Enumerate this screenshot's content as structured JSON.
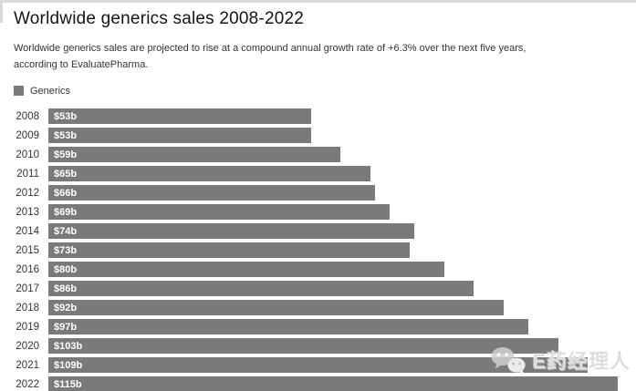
{
  "page": {
    "title": "Worldwide generics sales 2008-2022",
    "subtitle": "Worldwide generics sales are projected to rise at a compound annual growth rate of +6.3% over the next five years, according to EvaluatePharma."
  },
  "legend": {
    "label": "Generics",
    "swatch_color": "#7a7a7a"
  },
  "chart_data": {
    "type": "bar",
    "orientation": "horizontal",
    "title": "Worldwide generics sales 2008-2022",
    "subtitle": "Worldwide generics sales are projected to rise at a compound annual growth rate of +6.3% over the next five years, according to EvaluatePharma.",
    "categories": [
      "2008",
      "2009",
      "2010",
      "2011",
      "2012",
      "2013",
      "2014",
      "2015",
      "2016",
      "2017",
      "2018",
      "2019",
      "2020",
      "2021",
      "2022"
    ],
    "values": [
      53,
      53,
      59,
      65,
      66,
      69,
      74,
      73,
      80,
      86,
      92,
      97,
      103,
      109,
      115
    ],
    "value_labels": [
      "$53b",
      "$53b",
      "$59b",
      "$65b",
      "$66b",
      "$69b",
      "$74b",
      "$73b",
      "$80b",
      "$86b",
      "$92b",
      "$97b",
      "$103b",
      "$109b",
      "$115b"
    ],
    "unit": "$ billions",
    "legend": [
      "Generics"
    ],
    "legend_position": "top-left",
    "grid": false,
    "bar_color": "#7a7a7a",
    "xlim": [
      0,
      118
    ]
  },
  "watermark": {
    "text": "E药经理人",
    "icon": "wechat-icon",
    "color": "#dedede"
  }
}
